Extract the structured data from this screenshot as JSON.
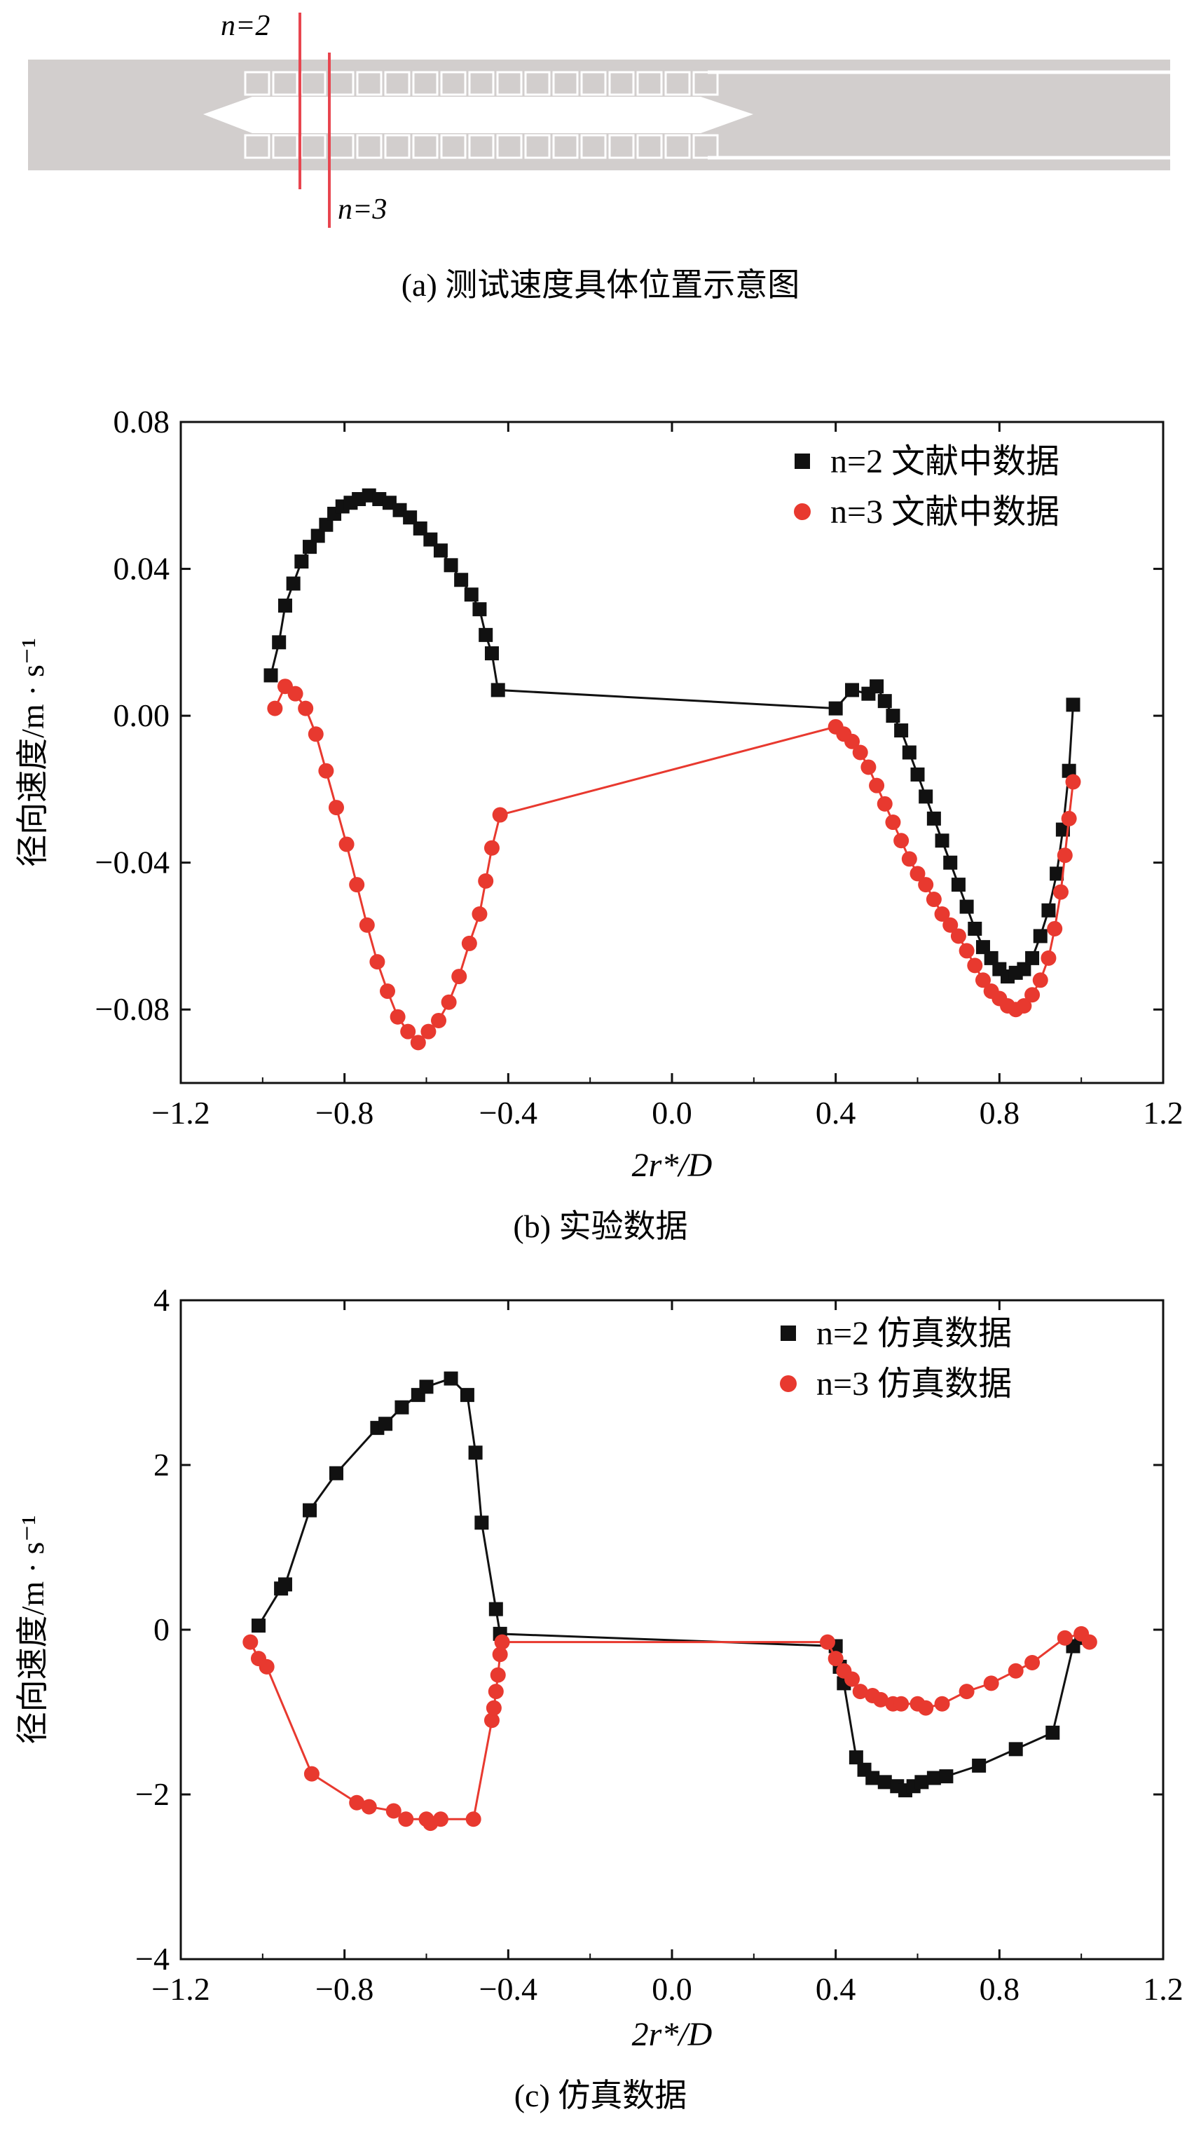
{
  "panel_a": {
    "caption": "(a) 测试速度具体位置示意图",
    "label_n2": "n=2",
    "label_n3": "n=3",
    "colors": {
      "road": "#d0cccb",
      "marker": "#e8454f",
      "white": "#ffffff"
    }
  },
  "chart_data": [
    {
      "id": "b",
      "type": "line",
      "caption": "(b) 实验数据",
      "xlabel": "2r*/D",
      "ylabel": "径向速度/m · s⁻¹",
      "xlim": [
        -1.2,
        1.2
      ],
      "ylim": [
        -0.1,
        0.08
      ],
      "xticks": [
        -1.2,
        -0.8,
        -0.4,
        0.0,
        0.4,
        0.8,
        1.2
      ],
      "xtick_labels": [
        "−1.2",
        "−0.8",
        "−0.4",
        "0.0",
        "0.4",
        "0.8",
        "1.2"
      ],
      "yticks": [
        0.08,
        0.04,
        0.0,
        -0.04,
        -0.08
      ],
      "ytick_labels": [
        "0.08",
        "0.04",
        "0.00",
        "−0.04",
        "−0.08"
      ],
      "legend_position": "top-right",
      "series": [
        {
          "name": "n=2 文献中数据",
          "marker": "square",
          "color": "#111111",
          "x": [
            -0.98,
            -0.96,
            -0.945,
            -0.925,
            -0.905,
            -0.885,
            -0.865,
            -0.845,
            -0.825,
            -0.805,
            -0.785,
            -0.765,
            -0.74,
            -0.715,
            -0.69,
            -0.665,
            -0.64,
            -0.615,
            -0.59,
            -0.565,
            -0.54,
            -0.515,
            -0.49,
            -0.47,
            -0.455,
            -0.44,
            -0.425,
            0.4,
            0.44,
            0.48,
            0.5,
            0.52,
            0.54,
            0.56,
            0.58,
            0.6,
            0.62,
            0.64,
            0.66,
            0.68,
            0.7,
            0.72,
            0.74,
            0.76,
            0.78,
            0.8,
            0.82,
            0.84,
            0.86,
            0.88,
            0.9,
            0.92,
            0.94,
            0.955,
            0.97,
            0.98
          ],
          "y": [
            0.011,
            0.02,
            0.03,
            0.036,
            0.042,
            0.046,
            0.049,
            0.052,
            0.055,
            0.057,
            0.058,
            0.059,
            0.06,
            0.059,
            0.058,
            0.056,
            0.054,
            0.051,
            0.048,
            0.045,
            0.041,
            0.037,
            0.033,
            0.029,
            0.022,
            0.017,
            0.007,
            0.002,
            0.007,
            0.006,
            0.008,
            0.004,
            0.0,
            -0.004,
            -0.01,
            -0.016,
            -0.022,
            -0.028,
            -0.034,
            -0.04,
            -0.046,
            -0.052,
            -0.058,
            -0.063,
            -0.066,
            -0.069,
            -0.071,
            -0.07,
            -0.069,
            -0.066,
            -0.06,
            -0.053,
            -0.043,
            -0.031,
            -0.015,
            0.003
          ]
        },
        {
          "name": "n=3 文献中数据",
          "marker": "circle",
          "color": "#e8392f",
          "x": [
            -0.97,
            -0.945,
            -0.92,
            -0.895,
            -0.87,
            -0.845,
            -0.82,
            -0.795,
            -0.77,
            -0.745,
            -0.72,
            -0.695,
            -0.67,
            -0.645,
            -0.62,
            -0.595,
            -0.57,
            -0.545,
            -0.52,
            -0.495,
            -0.47,
            -0.455,
            -0.44,
            -0.42,
            0.4,
            0.42,
            0.44,
            0.46,
            0.48,
            0.5,
            0.52,
            0.54,
            0.56,
            0.58,
            0.6,
            0.62,
            0.64,
            0.66,
            0.68,
            0.7,
            0.72,
            0.74,
            0.76,
            0.78,
            0.8,
            0.82,
            0.84,
            0.86,
            0.88,
            0.9,
            0.92,
            0.935,
            0.95,
            0.96,
            0.97,
            0.98
          ],
          "y": [
            0.002,
            0.008,
            0.006,
            0.002,
            -0.005,
            -0.015,
            -0.025,
            -0.035,
            -0.046,
            -0.057,
            -0.067,
            -0.075,
            -0.082,
            -0.086,
            -0.089,
            -0.086,
            -0.083,
            -0.078,
            -0.071,
            -0.062,
            -0.054,
            -0.045,
            -0.036,
            -0.027,
            -0.003,
            -0.005,
            -0.007,
            -0.01,
            -0.014,
            -0.019,
            -0.024,
            -0.029,
            -0.034,
            -0.039,
            -0.043,
            -0.046,
            -0.05,
            -0.054,
            -0.057,
            -0.06,
            -0.064,
            -0.068,
            -0.072,
            -0.075,
            -0.077,
            -0.079,
            -0.08,
            -0.079,
            -0.076,
            -0.072,
            -0.066,
            -0.058,
            -0.048,
            -0.038,
            -0.028,
            -0.018
          ]
        }
      ]
    },
    {
      "id": "c",
      "type": "line",
      "caption": "(c) 仿真数据",
      "xlabel": "2r*/D",
      "ylabel": "径向速度/m · s⁻¹",
      "xlim": [
        -1.2,
        1.2
      ],
      "ylim": [
        -4,
        4
      ],
      "xticks": [
        -1.2,
        -0.8,
        -0.4,
        0.0,
        0.4,
        0.8,
        1.2
      ],
      "xtick_labels": [
        "−1.2",
        "−0.8",
        "−0.4",
        "0.0",
        "0.4",
        "0.8",
        "1.2"
      ],
      "yticks": [
        4,
        2,
        0,
        -2,
        -4
      ],
      "ytick_labels": [
        "4",
        "2",
        "0",
        "−2",
        "−4"
      ],
      "legend_position": "top-right",
      "series": [
        {
          "name": "n=2 仿真数据",
          "marker": "square",
          "color": "#111111",
          "x": [
            -1.01,
            -0.955,
            -0.945,
            -0.885,
            -0.82,
            -0.72,
            -0.7,
            -0.66,
            -0.62,
            -0.6,
            -0.54,
            -0.5,
            -0.48,
            -0.465,
            -0.43,
            -0.42,
            0.4,
            0.41,
            0.42,
            0.45,
            0.47,
            0.49,
            0.52,
            0.55,
            0.57,
            0.59,
            0.61,
            0.64,
            0.67,
            0.75,
            0.84,
            0.93,
            0.98,
            1.0
          ],
          "y": [
            0.05,
            0.5,
            0.55,
            1.45,
            1.9,
            2.45,
            2.5,
            2.7,
            2.85,
            2.95,
            3.05,
            2.85,
            2.15,
            1.3,
            0.25,
            -0.05,
            -0.2,
            -0.45,
            -0.65,
            -1.55,
            -1.7,
            -1.8,
            -1.85,
            -1.9,
            -1.95,
            -1.9,
            -1.85,
            -1.8,
            -1.78,
            -1.65,
            -1.45,
            -1.25,
            -0.2,
            -0.1
          ]
        },
        {
          "name": "n=3 仿真数据",
          "marker": "circle",
          "color": "#e8392f",
          "x": [
            -1.03,
            -1.01,
            -0.99,
            -0.88,
            -0.77,
            -0.74,
            -0.68,
            -0.65,
            -0.6,
            -0.59,
            -0.565,
            -0.485,
            -0.44,
            -0.435,
            -0.43,
            -0.425,
            -0.42,
            -0.415,
            0.38,
            0.4,
            0.42,
            0.44,
            0.46,
            0.49,
            0.51,
            0.54,
            0.56,
            0.6,
            0.62,
            0.66,
            0.72,
            0.78,
            0.84,
            0.88,
            0.96,
            1.0,
            1.02
          ],
          "y": [
            -0.15,
            -0.35,
            -0.45,
            -1.75,
            -2.1,
            -2.15,
            -2.2,
            -2.3,
            -2.3,
            -2.35,
            -2.3,
            -2.3,
            -1.1,
            -0.95,
            -0.75,
            -0.55,
            -0.3,
            -0.15,
            -0.15,
            -0.35,
            -0.5,
            -0.6,
            -0.75,
            -0.8,
            -0.85,
            -0.9,
            -0.9,
            -0.9,
            -0.95,
            -0.9,
            -0.75,
            -0.65,
            -0.5,
            -0.4,
            -0.1,
            -0.05,
            -0.15
          ]
        }
      ]
    }
  ]
}
